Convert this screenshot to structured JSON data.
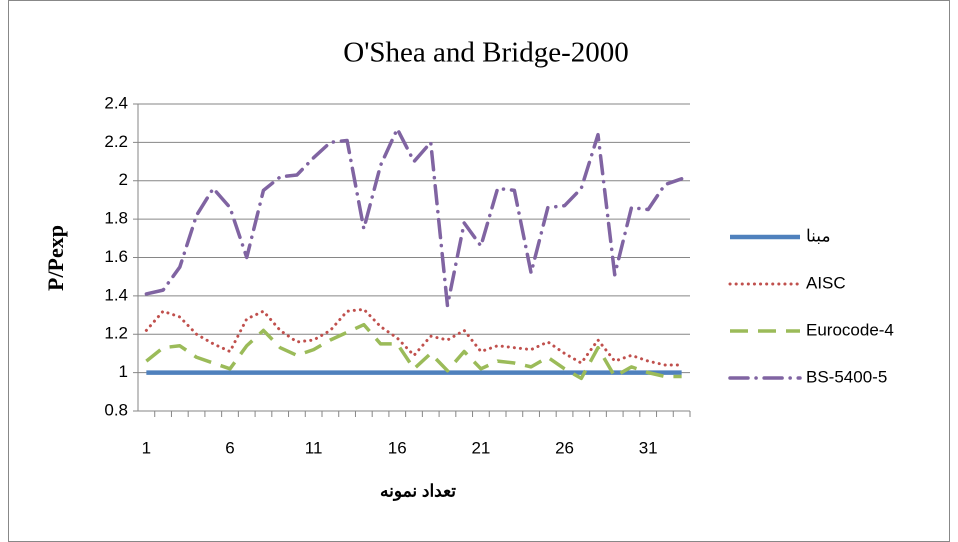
{
  "chart_data": {
    "type": "line",
    "title": "O'Shea and Bridge-2000",
    "y_label": "P/Pexp",
    "x_label": "تعداد نمونه",
    "categories": [
      1,
      null,
      null,
      null,
      null,
      6,
      null,
      null,
      null,
      null,
      11,
      null,
      null,
      null,
      null,
      16,
      null,
      null,
      null,
      null,
      21,
      null,
      null,
      null,
      null,
      26,
      null,
      null,
      null,
      null,
      31,
      null,
      null
    ],
    "ylim": [
      0.8,
      2.4
    ],
    "yticks": [
      0.8,
      1,
      1.2,
      1.4,
      1.6,
      1.8,
      2,
      2.2,
      2.4
    ],
    "grid": true,
    "legend": "right",
    "series": [
      {
        "name": "مبنا",
        "color": "#4f81bd",
        "line_style": "solid",
        "values": [
          1,
          1,
          1,
          1,
          1,
          1,
          1,
          1,
          1,
          1,
          1,
          1,
          1,
          1,
          1,
          1,
          1,
          1,
          1,
          1,
          1,
          1,
          1,
          1,
          1,
          1,
          1,
          1,
          1,
          1,
          1,
          1,
          1
        ]
      },
      {
        "name": "AISC",
        "color": "#c0504d",
        "line_style": "dotted",
        "values": [
          1.22,
          1.32,
          1.29,
          1.2,
          1.15,
          1.11,
          1.28,
          1.32,
          1.22,
          1.16,
          1.17,
          1.22,
          1.32,
          1.33,
          1.24,
          1.18,
          1.09,
          1.19,
          1.17,
          1.22,
          1.11,
          1.14,
          1.13,
          1.12,
          1.16,
          1.1,
          1.05,
          1.17,
          1.06,
          1.09,
          1.06,
          1.04,
          1.04
        ]
      },
      {
        "name": "Eurocode-4",
        "color": "#9bbb59",
        "line_style": "dashed",
        "values": [
          1.06,
          1.13,
          1.14,
          1.08,
          1.05,
          1.02,
          1.14,
          1.22,
          1.13,
          1.09,
          1.12,
          1.17,
          1.21,
          1.25,
          1.15,
          1.15,
          1.02,
          1.1,
          1.01,
          1.11,
          1.02,
          1.06,
          1.05,
          1.03,
          1.08,
          1.02,
          0.97,
          1.13,
          0.98,
          1.03,
          1.0,
          0.98,
          0.98
        ]
      },
      {
        "name": "BS-5400-5",
        "color": "#8064a2",
        "line_style": "dash-dot",
        "values": [
          1.41,
          1.43,
          1.55,
          1.82,
          1.96,
          1.86,
          1.6,
          1.95,
          2.02,
          2.03,
          2.12,
          2.2,
          2.21,
          1.75,
          2.08,
          2.27,
          2.1,
          2.2,
          1.35,
          1.78,
          1.66,
          1.96,
          1.95,
          1.52,
          1.86,
          1.87,
          1.96,
          2.24,
          1.51,
          1.86,
          1.85,
          1.98,
          2.01
        ]
      }
    ]
  }
}
